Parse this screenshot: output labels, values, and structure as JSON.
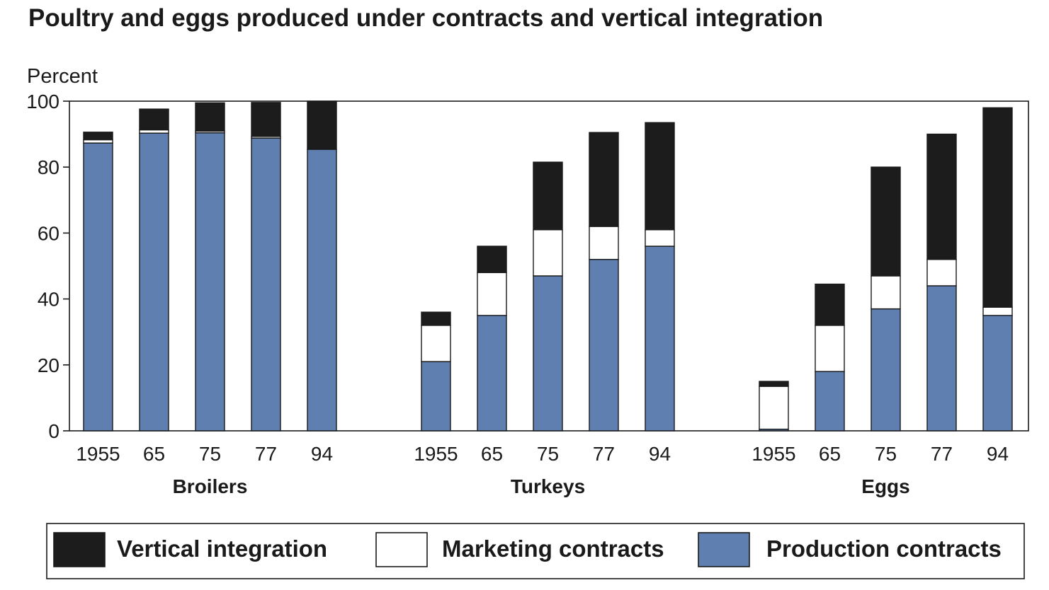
{
  "chart_data": {
    "type": "bar",
    "stacked": true,
    "title": "Poultry and eggs produced under contracts and vertical integration",
    "ylabel": "Percent",
    "ylim": [
      0,
      100
    ],
    "yticks": [
      0,
      20,
      40,
      60,
      80,
      100
    ],
    "grid": false,
    "legend_position": "bottom",
    "colors": {
      "Production contracts": "#5e7fb0",
      "Marketing contracts": "#ffffff",
      "Vertical integration": "#1c1c1c"
    },
    "legend": [
      {
        "name": "Vertical integration",
        "color": "#1c1c1c"
      },
      {
        "name": "Marketing contracts",
        "color": "#ffffff"
      },
      {
        "name": "Production contracts",
        "color": "#5e7fb0"
      }
    ],
    "groups": [
      {
        "name": "Broilers",
        "categories": [
          "1955",
          "65",
          "75",
          "77",
          "94"
        ],
        "series": [
          {
            "name": "Production contracts",
            "values": [
              87.3,
              90.3,
              90.4,
              88.8,
              85.4
            ]
          },
          {
            "name": "Marketing contracts",
            "values": [
              1.0,
              1.0,
              0.5,
              0.5,
              0.0
            ]
          },
          {
            "name": "Vertical integration",
            "values": [
              2.3,
              6.3,
              8.6,
              10.3,
              14.6
            ]
          }
        ]
      },
      {
        "name": "Turkeys",
        "categories": [
          "1955",
          "65",
          "75",
          "77",
          "94"
        ],
        "series": [
          {
            "name": "Production contracts",
            "values": [
              21.0,
              35.0,
              47.0,
              52.0,
              56.0
            ]
          },
          {
            "name": "Marketing contracts",
            "values": [
              11.0,
              13.0,
              14.0,
              10.0,
              5.0
            ]
          },
          {
            "name": "Vertical integration",
            "values": [
              4.0,
              8.0,
              20.5,
              28.5,
              32.5
            ]
          }
        ]
      },
      {
        "name": "Eggs",
        "categories": [
          "1955",
          "65",
          "75",
          "77",
          "94"
        ],
        "series": [
          {
            "name": "Production contracts",
            "values": [
              0.5,
              18.0,
              37.0,
              44.0,
              35.0
            ]
          },
          {
            "name": "Marketing contracts",
            "values": [
              13.0,
              14.0,
              10.0,
              8.0,
              2.5
            ]
          },
          {
            "name": "Vertical integration",
            "values": [
              1.5,
              12.5,
              33.0,
              38.0,
              60.5
            ]
          }
        ]
      }
    ]
  }
}
